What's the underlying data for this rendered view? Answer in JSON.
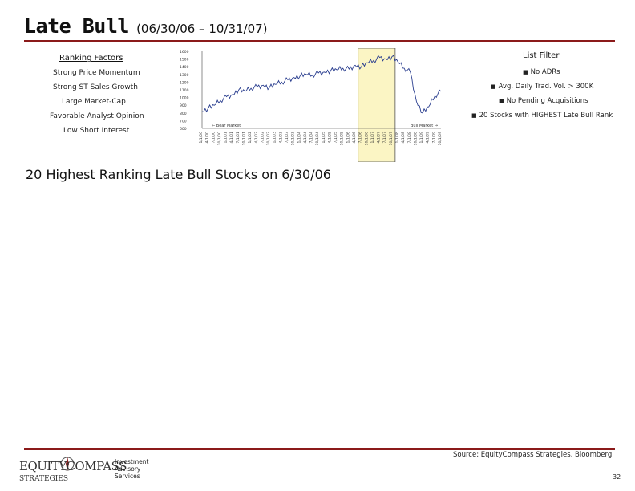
{
  "title": {
    "main": "Late Bull",
    "range": "(06/30/06 – 10/31/07)"
  },
  "ranking_factors": {
    "heading": "Ranking Factors",
    "items": [
      "Strong Price Momentum",
      "Strong ST Sales Growth",
      "Large Market-Cap",
      "Favorable Analyst Opinion",
      "Low Short Interest"
    ]
  },
  "list_filter": {
    "heading": "List Filter",
    "items": [
      "No ADRs",
      "Avg. Daily Trad. Vol. > 300K",
      "No Pending Acquisitions",
      "20 Stocks with HIGHEST Late Bull Rank"
    ]
  },
  "chart_data": {
    "type": "line",
    "y_ticks": [
      "1600",
      "1500",
      "1400",
      "1300",
      "1200",
      "1100",
      "1000",
      "900",
      "800",
      "700",
      "600"
    ],
    "ylim": [
      600,
      1600
    ],
    "x_labels": [
      "1/1/00",
      "4/1/00",
      "7/1/00",
      "10/1/00",
      "1/1/01",
      "4/1/01",
      "7/1/01",
      "10/1/01",
      "1/1/02",
      "4/1/02",
      "7/1/02",
      "10/1/02",
      "1/1/03",
      "4/1/03",
      "7/1/03",
      "10/1/03",
      "1/1/04",
      "4/1/04",
      "7/1/04",
      "10/1/04",
      "1/1/05",
      "4/1/05",
      "7/1/05",
      "10/1/05",
      "1/1/06",
      "4/1/06",
      "7/1/06",
      "10/1/06",
      "1/1/07",
      "4/1/07",
      "7/1/07",
      "10/1/07",
      "1/1/08",
      "4/1/08",
      "7/1/08",
      "10/1/08",
      "1/1/09",
      "4/1/09",
      "7/1/09",
      "10/1/09"
    ],
    "x": [
      "1/1/00",
      "4/1/00",
      "7/1/00",
      "10/1/00",
      "1/1/01",
      "4/1/01",
      "7/1/01",
      "10/1/01",
      "1/1/02",
      "4/1/02",
      "7/1/02",
      "10/1/02",
      "1/1/03",
      "4/1/03",
      "7/1/03",
      "10/1/03",
      "1/1/04",
      "4/1/04",
      "7/1/04",
      "10/1/04",
      "1/1/05",
      "4/1/05",
      "7/1/05",
      "10/1/05",
      "1/1/06",
      "4/1/06",
      "7/1/06",
      "10/1/06",
      "1/1/07",
      "4/1/07",
      "7/1/07",
      "10/1/07",
      "1/1/08",
      "4/1/08",
      "7/1/08",
      "10/1/08",
      "1/1/09",
      "4/1/09",
      "7/1/09",
      "10/1/09"
    ],
    "values": [
      820,
      860,
      900,
      960,
      1010,
      1040,
      1100,
      1080,
      1120,
      1140,
      1160,
      1130,
      1170,
      1200,
      1230,
      1260,
      1280,
      1300,
      1290,
      1320,
      1330,
      1350,
      1360,
      1380,
      1370,
      1420,
      1400,
      1450,
      1480,
      1520,
      1500,
      1530,
      1460,
      1380,
      1330,
      950,
      800,
      880,
      1020,
      1080
    ],
    "highlight": {
      "from": "7/1/06",
      "to": "10/1/07"
    },
    "annotations": [
      "Bear Market",
      "Bull Market"
    ]
  },
  "section_title": "20 Highest Ranking Late Bull Stocks on 6/30/06",
  "footer": {
    "logo_line1": "EQUITYCOMPASS",
    "logo_line2": "STRATEGIES",
    "service": [
      "Investment",
      "Advisory",
      "Services"
    ],
    "source": "Source: EquityCompass Strategies, Bloomberg",
    "page": "32"
  },
  "colors": {
    "rule": "#8b1a1a",
    "highlight": "#fbf5c4",
    "line": "#2a3e8f"
  }
}
